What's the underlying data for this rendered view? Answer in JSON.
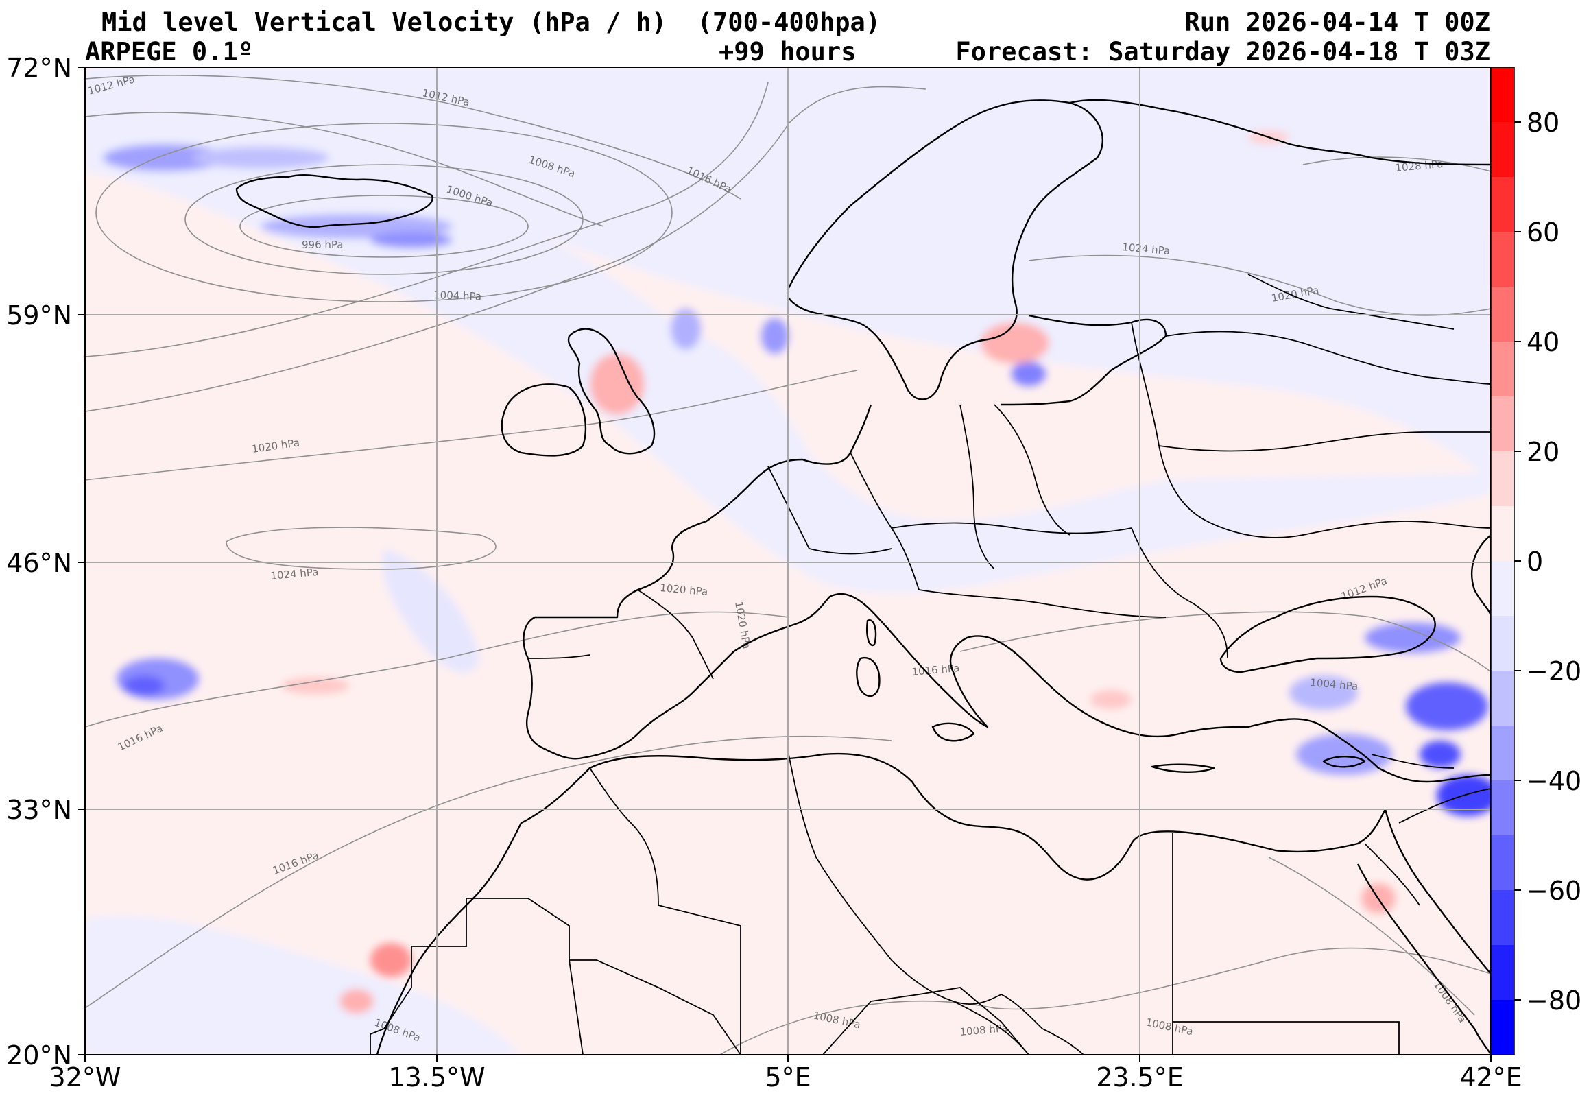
{
  "header": {
    "title_left": "Mid level Vertical Velocity (hPa / h)  (700-400hpa)",
    "subtitle_left": "ARPEGE 0.1º",
    "lead_time": "+99 hours",
    "run": "Run 2026-04-14 T 00Z",
    "forecast": "Forecast: Saturday 2026-04-18 T 03Z"
  },
  "axes": {
    "lat_labels": [
      "72°N",
      "59°N",
      "46°N",
      "33°N",
      "20°N"
    ],
    "lon_labels": [
      "32°W",
      "13.5°W",
      "5°E",
      "23.5°E",
      "42°E"
    ]
  },
  "colorbar": {
    "tick_labels": [
      "80",
      "60",
      "40",
      "20",
      "0",
      "−20",
      "−40",
      "−60",
      "−80"
    ],
    "range": [
      -90,
      90
    ],
    "bins": 18,
    "colors": [
      "#0000ff",
      "#2020ff",
      "#4040ff",
      "#6060ff",
      "#8080ff",
      "#a0a0ff",
      "#c0c0ff",
      "#e0e0ff",
      "#eeeeff",
      "#ffeeee",
      "#ffd6d6",
      "#ffb0b0",
      "#ff9090",
      "#ff7070",
      "#ff5050",
      "#ff3030",
      "#ff1010",
      "#ff0000"
    ]
  },
  "isobars": {
    "labels": [
      "1012 hPa",
      "1012 hPa",
      "1008 hPa",
      "1000 hPa",
      "996 hPa",
      "1004 hPa",
      "1016 hPa",
      "1024 hPa",
      "1028 hPa",
      "1020 hPa",
      "1020 hPa",
      "1024 hPa",
      "1020 hPa",
      "1020 hPa",
      "1016 hPa",
      "1016 hPa",
      "1012 hPa",
      "1004 hPa",
      "1016 hPa",
      "1008 hPa",
      "1008 hPa",
      "1008 hPa",
      "1008 hPa",
      "1008 hPa"
    ]
  },
  "colors": {
    "background_positive": "#fff0f0",
    "background_negative": "#eeeeff",
    "coastline": "#000000",
    "isobar": "#888888",
    "grid": "#aaaaaa"
  }
}
